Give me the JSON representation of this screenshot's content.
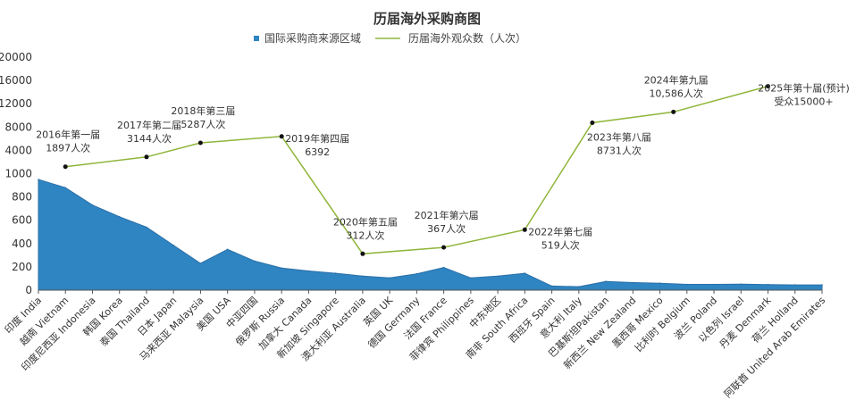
{
  "chart_data": {
    "type": "area",
    "title": "历届海外采购商图",
    "legend_placement": "top",
    "grid": false,
    "colors": {
      "area": "#2f85c1",
      "area_line": "#2a6fa8",
      "line": "#8fb53a",
      "dot": "#111111"
    },
    "y_ticks": [
      "20000",
      "16000",
      "12000",
      "8000",
      "4000",
      "1000",
      "800",
      "600",
      "400",
      "200",
      "0"
    ],
    "categories": [
      "印度 India",
      "越南 Vietnam",
      "印度尼西亚 Indonesia",
      "韩国 Korea",
      "泰国 Thailand",
      "日本 Japan",
      "马来西亚 Malaysia",
      "美国 USA",
      "中亚四国",
      "俄罗斯 Russia",
      "加拿大 Canada",
      "新加坡 Singapore",
      "澳大利亚 Australia",
      "英国 UK",
      "德国 Germany",
      "法国 France",
      "菲律宾 Philippines",
      "中东地区",
      "南非 South Africa",
      "西班牙 Spain",
      "意大利 Italy",
      "巴基斯坦Pakistan",
      "新西兰 New Zealand",
      "墨西哥 Mexico",
      "比利时 Belgium",
      "波兰 Poland",
      "以色列 Israel",
      "丹麦 Denmark",
      "荷兰 Holland",
      "阿联酋 United Arab Emirates"
    ],
    "series": [
      {
        "name": "国际采购商来源区域",
        "type": "area",
        "values": [
          950,
          880,
          730,
          630,
          540,
          385,
          230,
          350,
          250,
          190,
          165,
          145,
          120,
          105,
          140,
          195,
          105,
          120,
          145,
          35,
          30,
          75,
          65,
          60,
          50,
          50,
          52,
          48,
          45,
          45
        ]
      },
      {
        "name": "历届海外观众数（人次）",
        "type": "line",
        "points": [
          {
            "x": 1,
            "value": 1897,
            "label1": "2016年第一届",
            "label2": "1897人次",
            "pos": "above"
          },
          {
            "x": 4,
            "value": 3144,
            "label1": "2017年第二届",
            "label2": "3144人次",
            "pos": "above"
          },
          {
            "x": 6,
            "value": 5287,
            "label1": "2018年第三届",
            "label2": "5287人次",
            "pos": "above"
          },
          {
            "x": 9,
            "value": 6392,
            "label1": "2019年第四届",
            "label2": "6392",
            "pos": "right"
          },
          {
            "x": 12,
            "value": 312,
            "label1": "2020年第五届",
            "label2": "312人次",
            "pos": "above"
          },
          {
            "x": 15,
            "value": 367,
            "label1": "2021年第六届",
            "label2": "367人次",
            "pos": "above"
          },
          {
            "x": 18,
            "value": 519,
            "label1": "2022年第七届",
            "label2": "519人次",
            "pos": "right"
          },
          {
            "x": 20.5,
            "value": 8731,
            "label1": "2023年第八届",
            "label2": "8731人次",
            "pos": "below"
          },
          {
            "x": 23.5,
            "value": 10586,
            "label1": "2024年第九届",
            "label2": "10,586人次",
            "pos": "above"
          },
          {
            "x": 27,
            "value": 15000,
            "label1": "2025年第十届(预计)",
            "label2": "受众15000+",
            "pos": "right"
          }
        ]
      }
    ]
  }
}
